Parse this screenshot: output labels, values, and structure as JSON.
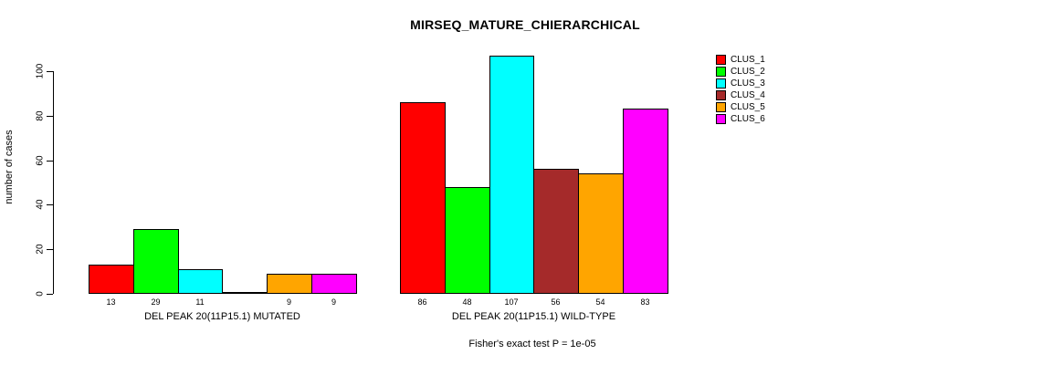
{
  "chart_data": {
    "type": "bar",
    "title": "MIRSEQ_MATURE_CHIERARCHICAL",
    "subtitle": "Fisher's exact test P = 1e-05",
    "ylabel": "number of cases",
    "xlabel": "",
    "ylim": [
      0,
      100
    ],
    "yticks": [
      0,
      20,
      40,
      60,
      80,
      100
    ],
    "grid": false,
    "legend_position": "right-of-plot",
    "bar_border_color": "#000000",
    "categories": [
      "DEL PEAK 20(11P15.1) MUTATED",
      "DEL PEAK 20(11P15.1) WILD-TYPE"
    ],
    "series": [
      {
        "name": "CLUS_1",
        "color": "#ff0000",
        "values": [
          13,
          86
        ]
      },
      {
        "name": "CLUS_2",
        "color": "#00ff00",
        "values": [
          29,
          48
        ]
      },
      {
        "name": "CLUS_3",
        "color": "#00ffff",
        "values": [
          11,
          107
        ]
      },
      {
        "name": "CLUS_4",
        "color": "#a52a2a",
        "values": [
          0,
          56
        ]
      },
      {
        "name": "CLUS_5",
        "color": "#ffa500",
        "values": [
          9,
          54
        ]
      },
      {
        "name": "CLUS_6",
        "color": "#ff00ff",
        "values": [
          9,
          83
        ]
      }
    ],
    "value_labels_under_bars": true,
    "zero_values_unlabeled": true
  }
}
